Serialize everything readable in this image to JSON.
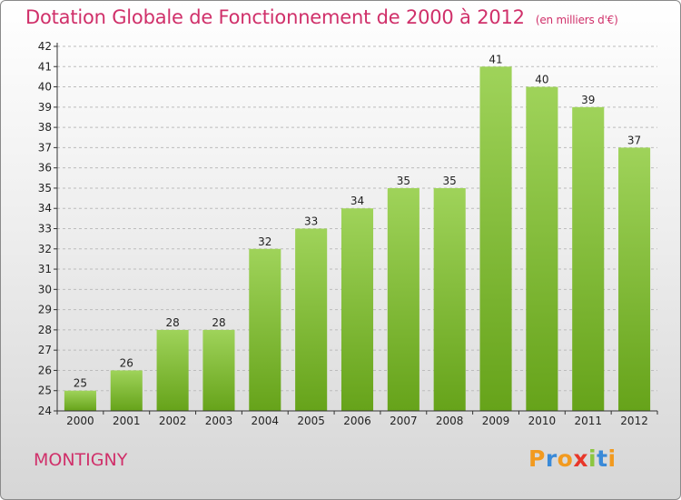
{
  "header": {
    "title": "Dotation Globale de Fonctionnement de 2000 à 2012",
    "unit": "(en milliers d'€)"
  },
  "footer": {
    "commune": "MONTIGNY",
    "logo_letters": [
      "P",
      "r",
      "o",
      "x",
      "i",
      "t",
      "i"
    ]
  },
  "colors": {
    "title": "#d0306a",
    "bar_top": "#9fd35a",
    "bar_bottom": "#66a31a",
    "axis": "#333333",
    "grid": "#bcbcbc",
    "logo": [
      "#f29a1f",
      "#3a8ad8",
      "#f29a1f",
      "#e8372a",
      "#8cc63f",
      "#3a8ad8",
      "#f29a1f"
    ]
  },
  "chart_data": {
    "type": "bar",
    "title": "Dotation Globale de Fonctionnement de 2000 à 2012",
    "subtitle": "(en milliers d'€)",
    "categories": [
      "2000",
      "2001",
      "2002",
      "2003",
      "2004",
      "2005",
      "2006",
      "2007",
      "2008",
      "2009",
      "2010",
      "2011",
      "2012"
    ],
    "values": [
      25,
      26,
      28,
      28,
      32,
      33,
      34,
      35,
      35,
      41,
      40,
      39,
      37
    ],
    "ylim": [
      24,
      42
    ],
    "yticks": [
      24,
      25,
      26,
      27,
      28,
      29,
      30,
      31,
      32,
      33,
      34,
      35,
      36,
      37,
      38,
      39,
      40,
      41,
      42
    ],
    "grid": true,
    "legend": "none"
  }
}
